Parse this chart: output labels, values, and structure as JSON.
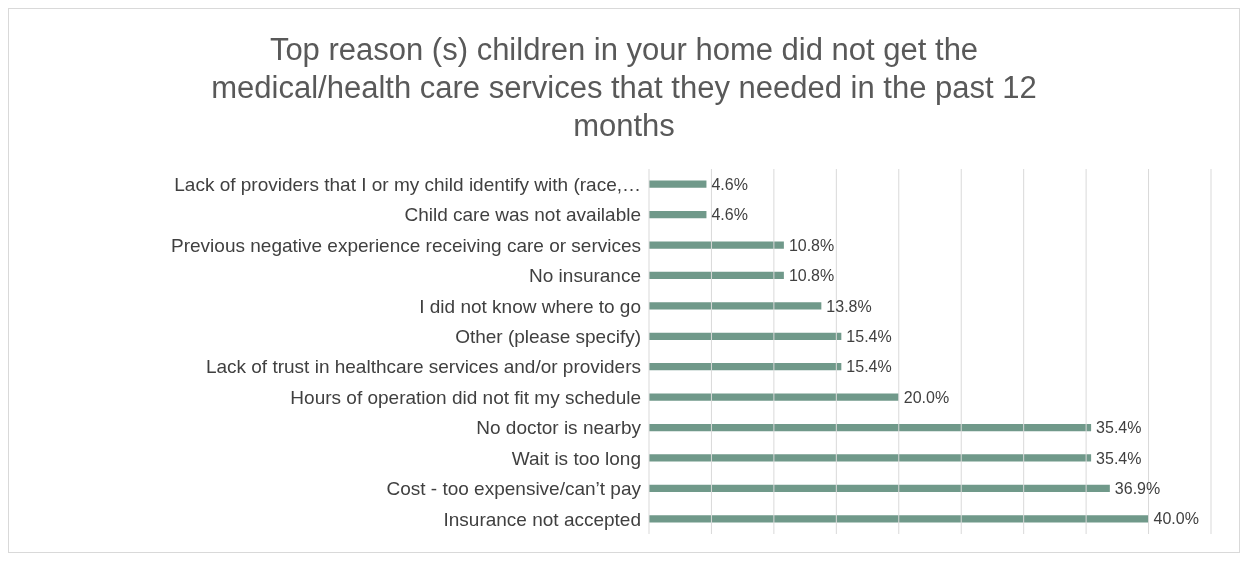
{
  "chart_data": {
    "type": "bar",
    "orientation": "horizontal",
    "title": "Top reason (s) children in your home did not get the medical/health care services that they needed in the past 12 months",
    "categories": [
      "Lack of providers that I or my child identify with (race,…",
      "Child care was not available",
      "Previous negative experience receiving care or services",
      "No insurance",
      "I did not know where to go",
      "Other (please specify)",
      "Lack of trust in healthcare services and/or providers",
      "Hours of operation did not fit my schedule",
      "No doctor is nearby",
      "Wait is too long",
      "Cost - too expensive/can’t pay",
      "Insurance not accepted"
    ],
    "values": [
      4.6,
      4.6,
      10.8,
      10.8,
      13.8,
      15.4,
      15.4,
      20.0,
      35.4,
      35.4,
      36.9,
      40.0
    ],
    "value_labels": [
      "4.6%",
      "4.6%",
      "10.8%",
      "10.8%",
      "13.8%",
      "15.4%",
      "15.4%",
      "20.0%",
      "35.4%",
      "35.4%",
      "36.9%",
      "40.0%"
    ],
    "color": "#70998a",
    "xlim": [
      0,
      45
    ],
    "xticks": [
      {
        "value": 0,
        "label": null
      },
      {
        "value": 5,
        "label": null
      },
      {
        "value": 10,
        "label": null
      },
      {
        "value": 15,
        "label": null
      },
      {
        "value": 20,
        "label": null
      },
      {
        "value": 25,
        "label": null
      },
      {
        "value": 30,
        "label": null
      },
      {
        "value": 35,
        "label": null
      },
      {
        "value": 40,
        "label": null
      },
      {
        "value": 45,
        "label": null
      }
    ],
    "grid": "x",
    "tick_labels": "y"
  }
}
